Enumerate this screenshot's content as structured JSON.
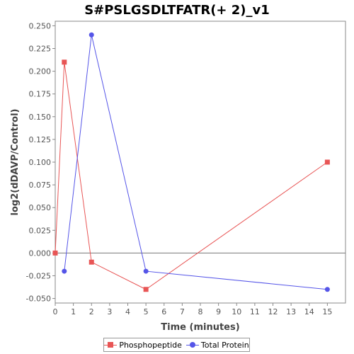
{
  "chart_data": {
    "type": "line",
    "title": "S#PSLGSDLTFATR(+ 2)_v1",
    "xlabel": "Time (minutes)",
    "ylabel": "log2(dDAVP/Control)",
    "xlim": [
      0,
      16
    ],
    "ylim": [
      -0.055,
      0.255
    ],
    "x_ticks": [
      0,
      1,
      2,
      3,
      4,
      5,
      6,
      7,
      8,
      9,
      10,
      11,
      12,
      13,
      14,
      15
    ],
    "y_ticks": [
      -0.05,
      -0.025,
      0.0,
      0.025,
      0.05,
      0.075,
      0.1,
      0.125,
      0.15,
      0.175,
      0.2,
      0.225,
      0.25
    ],
    "y_tick_labels": [
      "-0.050",
      "-0.025",
      "0.000",
      "0.025",
      "0.050",
      "0.075",
      "0.100",
      "0.125",
      "0.150",
      "0.175",
      "0.200",
      "0.225",
      "0.250"
    ],
    "zero_line": true,
    "grid": false,
    "legend_position": "bottom",
    "series": [
      {
        "name": "Phosphopeptide",
        "color": "#e85555",
        "marker": "square",
        "x": [
          0,
          0.5,
          2,
          5,
          15
        ],
        "y": [
          0.0,
          0.21,
          -0.01,
          -0.04,
          0.1
        ]
      },
      {
        "name": "Total Protein",
        "color": "#5555e8",
        "marker": "circle",
        "x": [
          0.5,
          2,
          5,
          15
        ],
        "y": [
          -0.02,
          0.24,
          -0.02,
          -0.04
        ]
      }
    ]
  }
}
